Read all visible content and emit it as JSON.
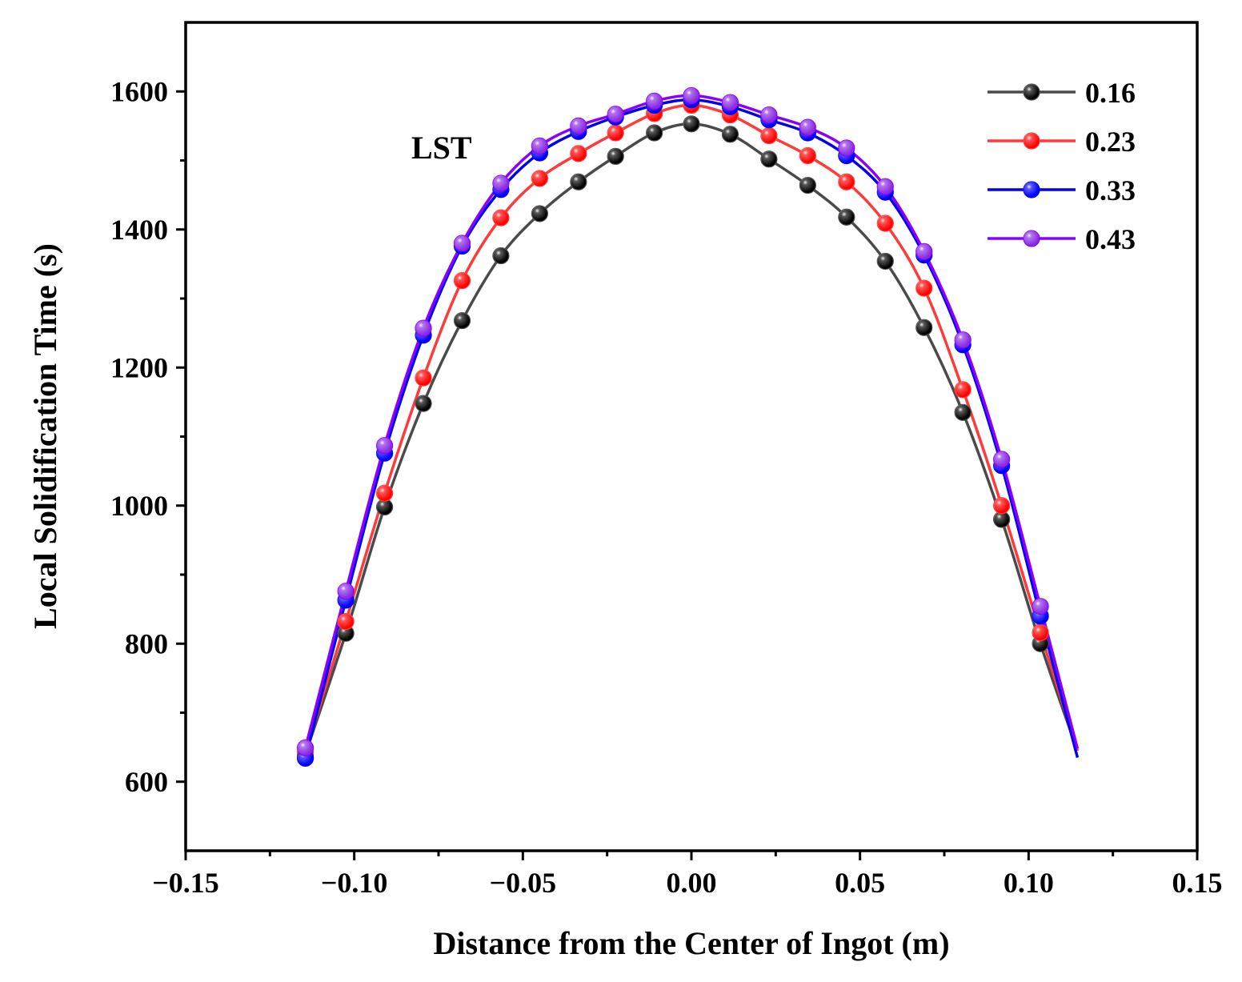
{
  "chart_data": {
    "type": "line",
    "title": "",
    "xlabel": "Distance from the Center of Ingot (m)",
    "ylabel": "Local Solidification Time (s)",
    "xlim": [
      -0.15,
      0.15
    ],
    "ylim": [
      500,
      1700
    ],
    "xticks": [
      -0.15,
      -0.1,
      -0.05,
      0.0,
      0.05,
      0.1,
      0.15
    ],
    "xtick_labels": [
      "−0.15",
      "−0.10",
      "−0.05",
      "0.00",
      "0.05",
      "0.10",
      "0.15"
    ],
    "yticks": [
      600,
      800,
      1000,
      1200,
      1400,
      1600
    ],
    "ytick_labels": [
      "600",
      "800",
      "1000",
      "1200",
      "1400",
      "1600"
    ],
    "annotation": "LST",
    "legend_position": "top-right",
    "x": [
      -0.1145,
      -0.1025,
      -0.091,
      -0.0795,
      -0.068,
      -0.0565,
      -0.045,
      -0.0335,
      -0.0225,
      -0.011,
      0.0,
      0.0115,
      0.023,
      0.0345,
      0.046,
      0.0575,
      0.069,
      0.0805,
      0.092,
      0.1035
    ],
    "series": [
      {
        "name": "0.16",
        "color": "#4a4a4a",
        "marker_color": "#000000",
        "values": [
          640,
          815,
          998,
          1148,
          1268,
          1362,
          1423,
          1469,
          1506,
          1540,
          1553,
          1538,
          1502,
          1464,
          1418,
          1354,
          1258,
          1135,
          980,
          800
        ],
        "end_value": 645
      },
      {
        "name": "0.23",
        "color": "#ff3a3a",
        "marker_color": "#ff0000",
        "values": [
          642,
          832,
          1018,
          1185,
          1326,
          1417,
          1474,
          1510,
          1540,
          1568,
          1580,
          1566,
          1536,
          1507,
          1469,
          1409,
          1315,
          1168,
          1000,
          816
        ],
        "end_value": 645
      },
      {
        "name": "0.33",
        "color": "#0000ee",
        "marker_color": "#0000ff",
        "values": [
          634,
          863,
          1076,
          1247,
          1376,
          1458,
          1511,
          1542,
          1563,
          1580,
          1588,
          1578,
          1559,
          1540,
          1507,
          1454,
          1363,
          1233,
          1058,
          840
        ],
        "end_value": 635
      },
      {
        "name": "0.43",
        "color": "#8a00ff",
        "marker_color": "#8a2be2",
        "values": [
          649,
          876,
          1087,
          1257,
          1380,
          1467,
          1521,
          1550,
          1567,
          1586,
          1594,
          1584,
          1566,
          1548,
          1518,
          1462,
          1368,
          1240,
          1067,
          854
        ],
        "end_value": 648
      }
    ]
  }
}
